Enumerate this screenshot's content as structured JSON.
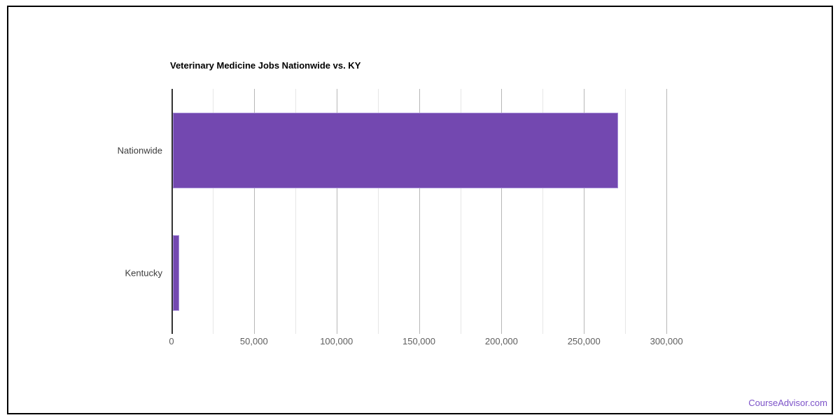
{
  "chart_data": {
    "type": "bar",
    "orientation": "horizontal",
    "title": "Veterinary Medicine Jobs Nationwide vs. KY",
    "categories": [
      "Nationwide",
      "Kentucky"
    ],
    "values": [
      270000,
      3800
    ],
    "xlabel": "",
    "ylabel": "",
    "xlim": [
      0,
      325000
    ],
    "x_major_tick_interval": 50000,
    "x_minor_gridline_interval": 25000,
    "x_tick_labels": [
      "0",
      "50,000",
      "100,000",
      "150,000",
      "200,000",
      "250,000",
      "300,000"
    ],
    "grid": "vertical",
    "legend_position": "none",
    "colors": {
      "bar_fill": "#7348b0",
      "bar_stroke": "#a38bd6",
      "axis_line": "#333333",
      "major_gridline": "#b7b7b7",
      "minor_gridline": "#e6e6e6",
      "title_text": "#000000",
      "category_text": "#3c3c3c",
      "tick_text": "#5e5e5e"
    }
  },
  "footer": {
    "brand_link": "CourseAdvisor.com",
    "brand_color": "#7c52c8"
  }
}
